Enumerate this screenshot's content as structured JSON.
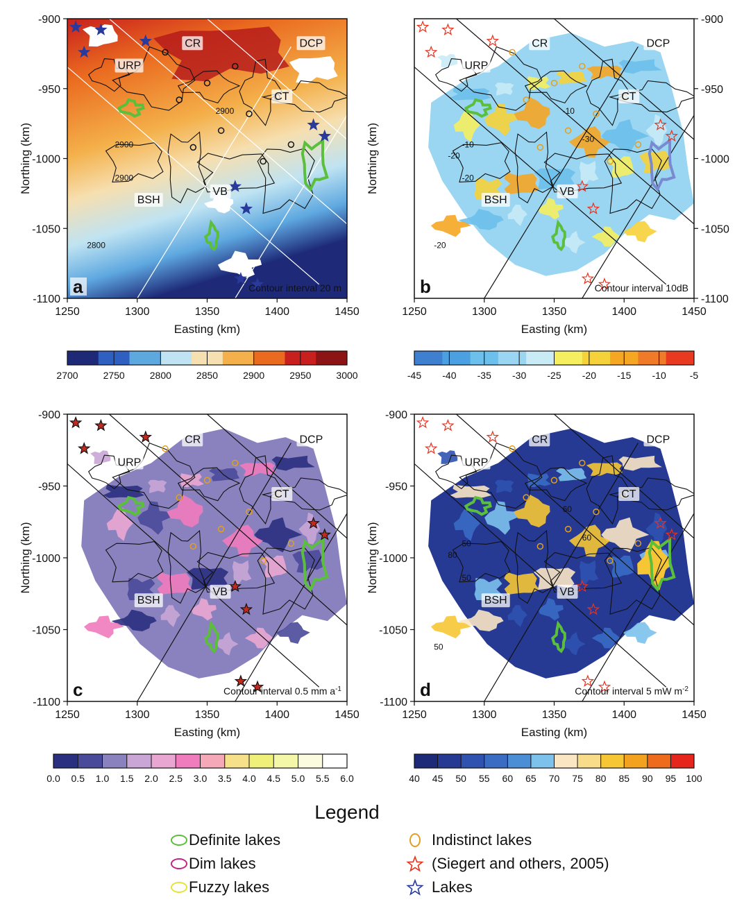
{
  "panels": [
    {
      "letter": "a",
      "contour_label": "Contour interval 20 m",
      "xlabel": "Easting (km)",
      "ylabel": "Northing (km)",
      "xticks": [
        "1250",
        "1300",
        "1350",
        "1400",
        "1450"
      ],
      "yticks": [
        "-900",
        "-950",
        "-1000",
        "-1050",
        "-1100"
      ],
      "ytick_side": "left",
      "map_labels": [
        "CR",
        "DCP",
        "URP",
        "CT",
        "BSH",
        "VB"
      ],
      "contour_values": [
        "2900",
        "2900",
        "2900",
        "2800"
      ],
      "colorbar_ticks": [
        "2700",
        "2750",
        "2800",
        "2850",
        "2900",
        "2950",
        "3000"
      ],
      "colorbar_colors": [
        "#1e2a78",
        "#2f5fc0",
        "#5ea8e0",
        "#bfe3f2",
        "#f6dfb0",
        "#f4b04a",
        "#ea6a1f",
        "#c8201e",
        "#8c1414"
      ]
    },
    {
      "letter": "b",
      "contour_label": "Contour interval 10dB",
      "xlabel": "Easting (km)",
      "ylabel": "Northing (km)",
      "xticks": [
        "1250",
        "1300",
        "1350",
        "1400",
        "1450"
      ],
      "yticks": [
        "-900",
        "-950",
        "-1000",
        "-1050",
        "-1100"
      ],
      "ytick_side": "right",
      "map_labels": [
        "CR",
        "DCP",
        "URP",
        "CT",
        "BSH",
        "VB"
      ],
      "contour_values": [
        "-10",
        "-10",
        "-20",
        "-20",
        "-30",
        "-20"
      ],
      "colorbar_ticks": [
        "-45",
        "-40",
        "-35",
        "-30",
        "-25",
        "-20",
        "-15",
        "-10",
        "-5"
      ],
      "colorbar_colors": [
        "#3f7fd0",
        "#4aa0e0",
        "#6cc0ec",
        "#9ad6f2",
        "#c9ebf6",
        "#f5ef60",
        "#f6d23a",
        "#f5a623",
        "#f07a28",
        "#e83a20"
      ]
    },
    {
      "letter": "c",
      "contour_label": "Contour interval 0.5 mm a",
      "contour_label_sup": "-1",
      "xlabel": "Easting (km)",
      "ylabel": "Northing (km)",
      "xticks": [
        "1250",
        "1300",
        "1350",
        "1400",
        "1450"
      ],
      "yticks": [
        "-900",
        "-950",
        "-1000",
        "-1050",
        "-1100"
      ],
      "ytick_side": "left",
      "map_labels": [
        "CR",
        "DCP",
        "URP",
        "CT",
        "BSH",
        "VB"
      ],
      "contour_values": [],
      "colorbar_ticks": [
        "0.0",
        "0.5",
        "1.0",
        "1.5",
        "2.0",
        "2.5",
        "3.0",
        "3.5",
        "4.0",
        "4.5",
        "5.0",
        "5.5",
        "6.0"
      ],
      "colorbar_colors": [
        "#2a2f80",
        "#4a4a9a",
        "#8a82be",
        "#c9a6d6",
        "#eaa6d2",
        "#f07bbd",
        "#f4a8b8",
        "#f6e08a",
        "#eef07a",
        "#f4f6a8",
        "#fbfbe0",
        "#ffffff"
      ]
    },
    {
      "letter": "d",
      "contour_label": "Contour interval 5 mW m",
      "contour_label_sup": "-2",
      "xlabel": "Easting (km)",
      "ylabel": "Northing (km)",
      "xticks": [
        "1250",
        "1300",
        "1350",
        "1400",
        "1450"
      ],
      "yticks": [
        "-900",
        "-950",
        "-1000",
        "-1050",
        "-1100"
      ],
      "ytick_side": "left",
      "map_labels": [
        "CR",
        "DCP",
        "URP",
        "CT",
        "BSH",
        "VB"
      ],
      "contour_values": [
        "60",
        "50",
        "50",
        "50",
        "60",
        "80"
      ],
      "colorbar_ticks": [
        "40",
        "45",
        "50",
        "55",
        "60",
        "65",
        "70",
        "75",
        "80",
        "85",
        "90",
        "95",
        "100"
      ],
      "colorbar_colors": [
        "#1c2a78",
        "#263a94",
        "#2f52b0",
        "#3a6cc4",
        "#4b8ed6",
        "#7cc2ec",
        "#fbe6c4",
        "#f8dc8a",
        "#f6c634",
        "#f2a21e",
        "#ee6a1c",
        "#e6261c"
      ]
    }
  ],
  "legend": {
    "title": "Legend",
    "items": [
      {
        "label": "Definite lakes",
        "symbol": "ellipse",
        "color": "#5bbf3c"
      },
      {
        "label": "Indistinct lakes",
        "symbol": "circle",
        "color": "#e0a020"
      },
      {
        "label": "Dim lakes",
        "symbol": "ellipse",
        "color": "#c2258a"
      },
      {
        "label": "(Siegert and others, 2005)",
        "symbol": "star",
        "color": "#e8321e"
      },
      {
        "label": "Fuzzy lakes",
        "symbol": "ellipse",
        "color": "#e8e23a"
      },
      {
        "label": "Lakes",
        "symbol": "star",
        "color": "#2a3a9c"
      }
    ]
  }
}
